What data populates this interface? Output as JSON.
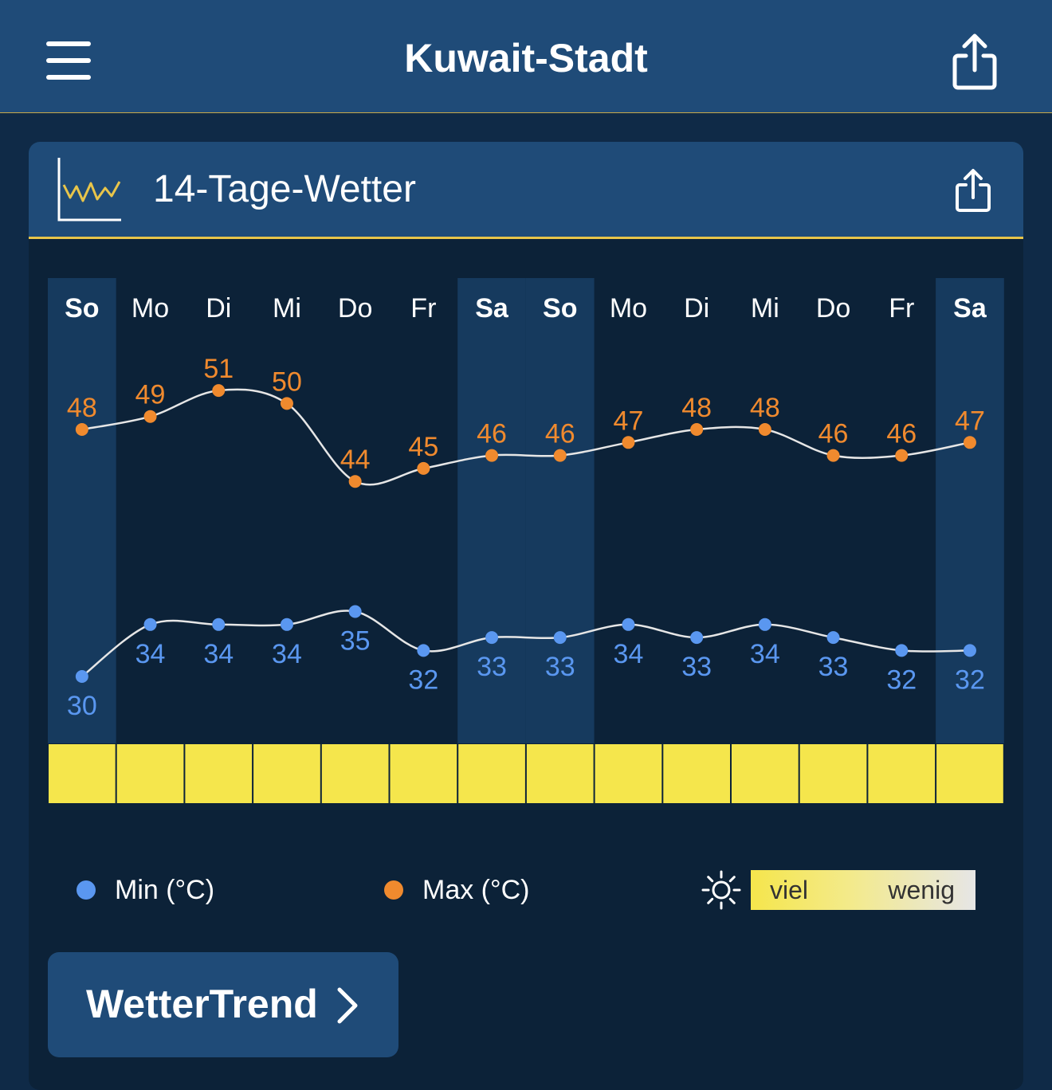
{
  "header": {
    "title": "Kuwait-Stadt",
    "menu_icon": "hamburger-menu-icon",
    "share_icon": "share-icon"
  },
  "card": {
    "title": "14-Tage-Wetter",
    "icon": "line-chart-icon",
    "share_icon": "share-icon"
  },
  "colors": {
    "max": "#f08a2e",
    "min": "#5a97f0",
    "weekend_column": "#163a5e",
    "sunshine_high": "#f5e64c"
  },
  "chart_data": {
    "type": "line",
    "categories": [
      "So",
      "Mo",
      "Di",
      "Mi",
      "Do",
      "Fr",
      "Sa",
      "So",
      "Mo",
      "Di",
      "Mi",
      "Do",
      "Fr",
      "Sa"
    ],
    "weekend": [
      true,
      false,
      false,
      false,
      false,
      false,
      true,
      true,
      false,
      false,
      false,
      false,
      false,
      true
    ],
    "series": [
      {
        "name": "Max (°C)",
        "values": [
          48,
          49,
          51,
          50,
          44,
          45,
          46,
          46,
          47,
          48,
          48,
          46,
          46,
          47
        ]
      },
      {
        "name": "Min (°C)",
        "values": [
          30,
          34,
          34,
          34,
          35,
          32,
          33,
          33,
          34,
          33,
          34,
          33,
          32,
          32
        ]
      }
    ],
    "sunshine": [
      "viel",
      "viel",
      "viel",
      "viel",
      "viel",
      "viel",
      "viel",
      "viel",
      "viel",
      "viel",
      "viel",
      "viel",
      "viel",
      "viel"
    ]
  },
  "legend": {
    "min_label": "Min (°C)",
    "max_label": "Max (°C)",
    "sun_icon": "sun-icon",
    "sun_high": "viel",
    "sun_low": "wenig"
  },
  "button": {
    "label": "WetterTrend",
    "icon": "chevron-right-icon"
  }
}
